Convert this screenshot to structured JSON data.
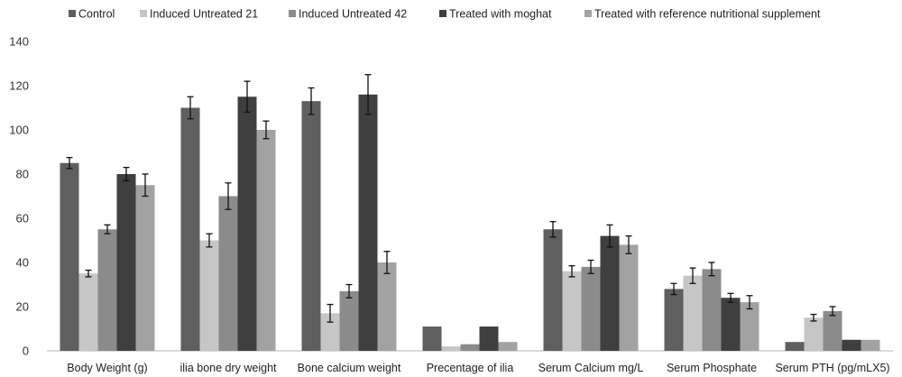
{
  "chart_data": {
    "type": "bar",
    "title": "",
    "xlabel": "",
    "ylabel": "",
    "ylim": [
      0,
      140
    ],
    "yticks": [
      0,
      20,
      40,
      60,
      80,
      100,
      120,
      140
    ],
    "grid": false,
    "legend_position": "top",
    "categories": [
      "Body Weight (g)",
      "ilia bone dry weight",
      "Bone calcium weight",
      "Precentage of ilia",
      "Serum Calcium mg/L",
      "Serum Phosphate",
      "Serum PTH (pg/mLX5)"
    ],
    "series": [
      {
        "name": "Control",
        "color": "#5f5f5f",
        "values": [
          85,
          110,
          113,
          11,
          55,
          28,
          4
        ],
        "errors": [
          2.5,
          5,
          6,
          null,
          3.5,
          2.5,
          null
        ]
      },
      {
        "name": "Induced Untreated 21",
        "color": "#c6c6c6",
        "values": [
          35,
          50,
          17,
          2,
          36,
          34,
          15
        ],
        "errors": [
          1.5,
          3,
          4,
          null,
          2.5,
          3.5,
          1.5
        ]
      },
      {
        "name": "Induced Untreated 42",
        "color": "#8b8b8b",
        "values": [
          55,
          70,
          27,
          3,
          38,
          37,
          18
        ],
        "errors": [
          2,
          6,
          3,
          null,
          3,
          3,
          2
        ]
      },
      {
        "name": "Treated with moghat",
        "color": "#3f3f3f",
        "values": [
          80,
          115,
          116,
          11,
          52,
          24,
          5
        ],
        "errors": [
          3,
          7,
          9,
          null,
          5,
          2,
          null
        ]
      },
      {
        "name": "Treated with reference  nutritional supplement",
        "color": "#a2a2a2",
        "values": [
          75,
          100,
          40,
          4,
          48,
          22,
          5
        ],
        "errors": [
          5,
          4,
          5,
          null,
          4,
          3,
          null
        ]
      }
    ]
  }
}
